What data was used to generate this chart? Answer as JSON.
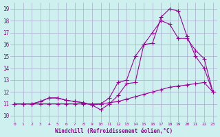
{
  "xlabel": "Windchill (Refroidissement éolien,°C)",
  "bg_color": "#cef0ee",
  "grid_color": "#aaaacc",
  "line_color": "#990099",
  "xlim": [
    -0.5,
    23.5
  ],
  "ylim": [
    9.5,
    19.5
  ],
  "xticks": [
    0,
    1,
    2,
    3,
    4,
    5,
    6,
    7,
    8,
    9,
    10,
    11,
    12,
    13,
    14,
    15,
    16,
    17,
    18,
    19,
    20,
    21,
    22,
    23
  ],
  "yticks": [
    10,
    11,
    12,
    13,
    14,
    15,
    16,
    17,
    18,
    19
  ],
  "line1_x": [
    0,
    1,
    2,
    3,
    4,
    5,
    6,
    7,
    8,
    9,
    10,
    11,
    12,
    13,
    14,
    15,
    16,
    17,
    18,
    19,
    20,
    21,
    22,
    23
  ],
  "line1_y": [
    11.0,
    11.0,
    11.0,
    11.2,
    11.5,
    11.5,
    11.3,
    11.2,
    11.1,
    10.9,
    10.5,
    11.0,
    11.7,
    12.7,
    12.8,
    16.0,
    16.1,
    18.3,
    19.0,
    18.8,
    16.7,
    15.0,
    14.0,
    12.0
  ],
  "line2_x": [
    0,
    1,
    2,
    3,
    4,
    5,
    6,
    7,
    8,
    9,
    10,
    11,
    12,
    13,
    14,
    15,
    16,
    17,
    18,
    19,
    20,
    21,
    22,
    23
  ],
  "line2_y": [
    11.0,
    11.0,
    11.0,
    11.2,
    11.5,
    11.5,
    11.3,
    11.2,
    11.1,
    10.9,
    11.0,
    11.5,
    12.8,
    13.0,
    15.0,
    16.0,
    17.0,
    18.0,
    17.7,
    16.5,
    16.5,
    15.5,
    14.8,
    12.0
  ],
  "line3_x": [
    0,
    1,
    2,
    3,
    4,
    5,
    6,
    7,
    8,
    9,
    10,
    11,
    12,
    13,
    14,
    15,
    16,
    17,
    18,
    19,
    20,
    21,
    22,
    23
  ],
  "line3_y": [
    11.0,
    11.0,
    11.0,
    11.0,
    11.0,
    11.0,
    11.0,
    11.0,
    11.0,
    11.0,
    11.0,
    11.1,
    11.2,
    11.4,
    11.6,
    11.8,
    12.0,
    12.2,
    12.4,
    12.5,
    12.6,
    12.7,
    12.8,
    12.0
  ]
}
